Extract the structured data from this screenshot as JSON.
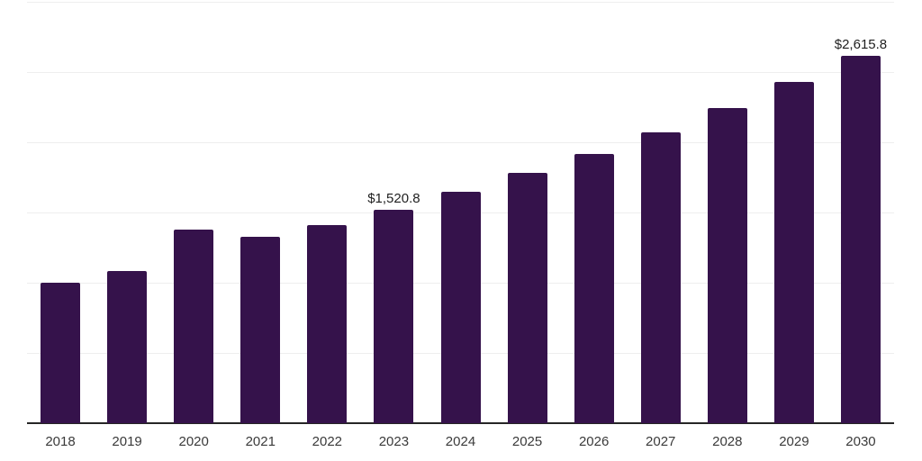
{
  "chart_data": {
    "type": "bar",
    "title": "",
    "xlabel": "",
    "ylabel": "",
    "categories": [
      "2018",
      "2019",
      "2020",
      "2021",
      "2022",
      "2023",
      "2024",
      "2025",
      "2026",
      "2027",
      "2028",
      "2029",
      "2030"
    ],
    "values": [
      1000,
      1083,
      1380,
      1324,
      1410,
      1520.8,
      1648,
      1781,
      1918,
      2071,
      2241,
      2429,
      2615.8
    ],
    "bar_labels": {
      "2023": "$1,520.8",
      "2030": "$2,615.8"
    },
    "ylim": [
      0,
      3000
    ],
    "gridline_values": [
      500,
      1000,
      1500,
      2000,
      2500,
      3000
    ],
    "grid": "horizontal",
    "legend": "none",
    "y_tick_labels_shown": false,
    "colors": {
      "bar": "#35124b",
      "gridline": "#eeeeee",
      "axis_line": "#262626",
      "x_tick_label": "#3a3a3a",
      "bar_value_label": "#1f1f1f",
      "background": "#ffffff"
    }
  }
}
